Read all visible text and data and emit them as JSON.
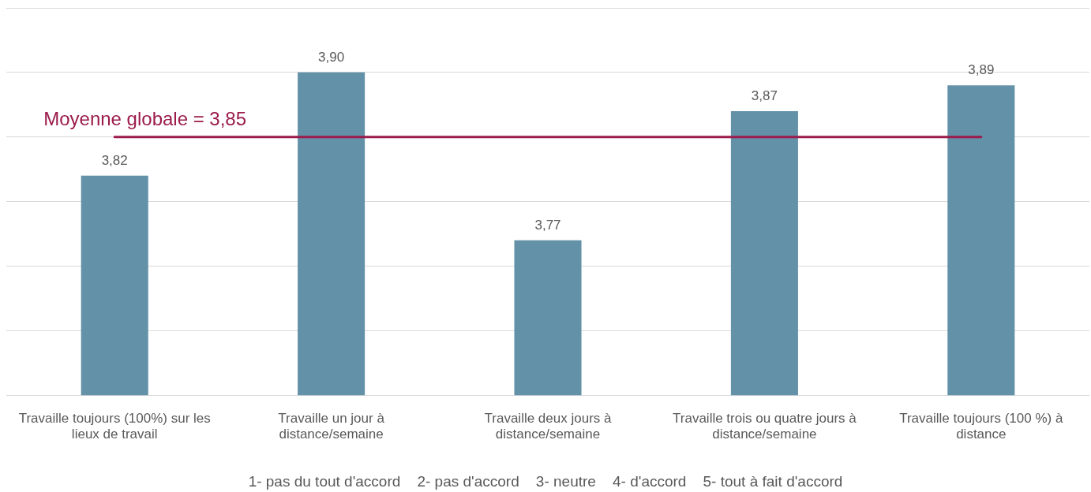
{
  "chart_data": {
    "type": "bar",
    "categories": [
      "Travaille toujours (100%) sur les lieux de travail",
      "Travaille un jour à distance/semaine",
      "Travaille deux jours à distance/semaine",
      "Travaille trois ou quatre jours à distance/semaine",
      "Travaille toujours (100 %) à distance"
    ],
    "values": [
      3.82,
      3.9,
      3.77,
      3.87,
      3.89
    ],
    "value_labels": [
      "3,82",
      "3,90",
      "3,77",
      "3,87",
      "3,89"
    ],
    "color": "#6391a8",
    "ylim": [
      3.65,
      3.95
    ],
    "yticks": [
      {
        "value": 3.65,
        "label": null
      },
      {
        "value": 3.7,
        "label": null
      },
      {
        "value": 3.75,
        "label": null
      },
      {
        "value": 3.8,
        "label": null
      },
      {
        "value": 3.85,
        "label": null
      },
      {
        "value": 3.9,
        "label": null
      },
      {
        "value": 3.95,
        "label": null
      }
    ],
    "tick_labels": "x",
    "grid": "y",
    "legend": false,
    "ref_lines": [
      {
        "axis": "y",
        "value": 3.85,
        "label": "Moyenne globale = 3,85",
        "color": "#9b1b4a"
      }
    ],
    "annotations": [
      "1- pas du tout d'accord    2- pas d'accord    3- neutre    4- d'accord    5- tout à fait d'accord"
    ]
  }
}
